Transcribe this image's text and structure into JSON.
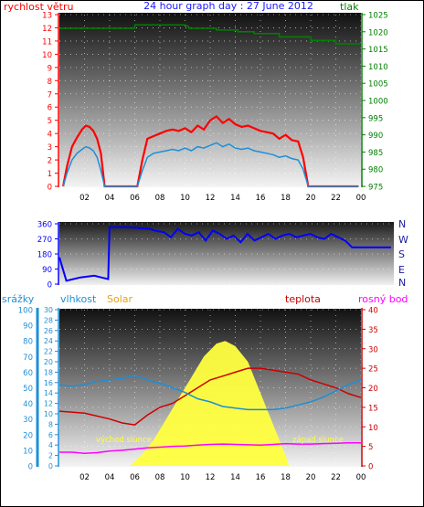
{
  "chart_data": [
    {
      "type": "line",
      "title": "24 hour graph day : 27 June 2012",
      "left_axis": {
        "label": "rychlost větru",
        "ticks": [
          0,
          1,
          2,
          3,
          4,
          5,
          6,
          7,
          8,
          9,
          10,
          11,
          12,
          13
        ],
        "range": [
          0,
          13
        ]
      },
      "right_axis": {
        "label": "tlak",
        "ticks": [
          975,
          980,
          985,
          990,
          995,
          1000,
          1005,
          1010,
          1015,
          1020,
          1025
        ],
        "range": [
          975,
          1025
        ]
      },
      "x_ticks": [
        "02",
        "04",
        "06",
        "08",
        "10",
        "12",
        "14",
        "16",
        "18",
        "20",
        "22",
        "00"
      ],
      "x_range_hours": [
        0,
        24
      ],
      "series": [
        {
          "color": "#ff0000",
          "x": [
            0.3,
            0.6,
            1.0,
            1.4,
            1.8,
            2.1,
            2.4,
            2.7,
            3.0,
            3.3,
            3.6,
            5.0,
            6.2,
            6.6,
            7.0,
            7.5,
            8.0,
            8.5,
            9.0,
            9.5,
            10.0,
            10.5,
            11.0,
            11.5,
            12.0,
            12.5,
            13.0,
            13.5,
            14.0,
            14.5,
            15.0,
            15.5,
            16.0,
            16.5,
            17.0,
            17.5,
            18.0,
            18.5,
            19.0,
            19.4,
            19.8,
            20.5,
            22.0,
            23.8
          ],
          "y": [
            0,
            1.5,
            3.0,
            3.7,
            4.3,
            4.6,
            4.5,
            4.2,
            3.6,
            2.5,
            0,
            0,
            0,
            2.0,
            3.6,
            3.8,
            4.0,
            4.2,
            4.3,
            4.2,
            4.4,
            4.1,
            4.6,
            4.3,
            5.0,
            5.3,
            4.8,
            5.1,
            4.7,
            4.5,
            4.6,
            4.4,
            4.2,
            4.1,
            4.0,
            3.6,
            3.9,
            3.5,
            3.4,
            2.2,
            0,
            0,
            0,
            0
          ]
        },
        {
          "color": "#1e8fd6",
          "x": [
            0.3,
            0.6,
            1.0,
            1.4,
            1.8,
            2.1,
            2.4,
            2.7,
            3.0,
            3.3,
            3.6,
            5.0,
            6.2,
            6.6,
            7.0,
            7.5,
            8.0,
            8.5,
            9.0,
            9.5,
            10.0,
            10.5,
            11.0,
            11.5,
            12.0,
            12.5,
            13.0,
            13.5,
            14.0,
            14.5,
            15.0,
            15.5,
            16.0,
            16.5,
            17.0,
            17.5,
            18.0,
            18.5,
            19.0,
            19.4,
            19.8,
            20.5,
            22.0,
            23.8
          ],
          "y": [
            0,
            1.0,
            2.0,
            2.5,
            2.8,
            3.0,
            2.9,
            2.7,
            2.2,
            1.2,
            0,
            0,
            0,
            1.2,
            2.2,
            2.5,
            2.6,
            2.7,
            2.8,
            2.7,
            2.9,
            2.7,
            3.0,
            2.9,
            3.1,
            3.3,
            3.0,
            3.2,
            2.9,
            2.8,
            2.9,
            2.7,
            2.6,
            2.5,
            2.4,
            2.2,
            2.3,
            2.1,
            2.0,
            1.3,
            0,
            0,
            0,
            0
          ]
        },
        {
          "color": "#008000",
          "axis": "right",
          "x": [
            0,
            6.0,
            6.0,
            10.0,
            10.3,
            10.3,
            12.5,
            12.5,
            14.2,
            14.2,
            15.5,
            15.5,
            17.5,
            17.5,
            20.0,
            20.0,
            22.0,
            22.0,
            24.0
          ],
          "y": [
            1021,
            1021,
            1022,
            1022,
            1021.5,
            1021,
            1021,
            1020.5,
            1020.5,
            1020,
            1020,
            1019.5,
            1019.5,
            1018.5,
            1018.5,
            1017.5,
            1017.5,
            1016.5,
            1016.5
          ]
        }
      ]
    },
    {
      "type": "scatter",
      "left_axis": {
        "ticks": [
          0,
          90,
          180,
          270,
          360
        ],
        "range": [
          0,
          360
        ]
      },
      "right_labels": [
        "N",
        "W",
        "S",
        "E",
        "N"
      ],
      "series": [
        {
          "color": "#0000ff",
          "x": [
            0,
            0.5,
            1.0,
            1.5,
            2.0,
            2.5,
            3.0,
            3.5,
            3.6,
            3.7,
            5.0,
            6.5,
            6.8,
            7.5,
            8.0,
            8.5,
            9.0,
            9.5,
            10.0,
            10.5,
            11.0,
            11.5,
            12.0,
            12.5,
            13.0,
            13.5,
            14.0,
            14.5,
            15.0,
            15.5,
            16.0,
            16.5,
            17.0,
            17.5,
            18.0,
            18.5,
            19.0,
            19.5,
            20.0,
            20.5,
            21.0,
            22.0,
            23.8
          ],
          "y": [
            160,
            20,
            30,
            40,
            45,
            50,
            40,
            30,
            340,
            340,
            340,
            330,
            320,
            310,
            280,
            330,
            300,
            290,
            310,
            260,
            320,
            300,
            270,
            290,
            250,
            300,
            260,
            280,
            300,
            270,
            290,
            300,
            280,
            290,
            300,
            280,
            270,
            300,
            280,
            260,
            220,
            220,
            220
          ]
        }
      ]
    },
    {
      "type": "line",
      "axes": {
        "srazky": {
          "label": "srážky",
          "ticks": [
            0,
            10,
            20,
            30,
            40,
            50,
            60,
            70,
            80,
            90,
            100
          ],
          "color": "#1e8fd6"
        },
        "vlhkost": {
          "label": "vlhkost",
          "ticks": [
            0,
            2,
            4,
            6,
            8,
            10,
            12,
            14,
            16,
            18,
            20,
            22,
            24,
            26,
            28,
            30
          ],
          "color": "#1e8fd6"
        },
        "solar": {
          "label": "Solar",
          "color": "#e6a020"
        },
        "teplota": {
          "label": "teplota",
          "ticks": [
            0,
            5,
            10,
            15,
            20,
            25,
            30,
            35,
            40
          ],
          "color": "#cc0000"
        },
        "rosny_bod": {
          "label": "rosný bod",
          "color": "#ff00ff"
        }
      },
      "annotations": [
        "východ slunce",
        "západ slunce"
      ],
      "x_ticks": [
        "02",
        "04",
        "06",
        "08",
        "10",
        "12",
        "14",
        "16",
        "18",
        "20",
        "22",
        "00"
      ],
      "series": [
        {
          "color": "#ffff40",
          "x": [
            5.6,
            6.5,
            7.5,
            8.5,
            9.5,
            10.5,
            11.5,
            12.5,
            13.2,
            14.0,
            15.0,
            16.0,
            17.0,
            18.0,
            18.3
          ],
          "y": [
            0,
            2,
            5,
            9,
            13,
            17,
            21,
            23.5,
            24,
            23,
            20,
            14,
            8,
            2,
            0
          ]
        },
        {
          "color": "#cc0000",
          "x": [
            0,
            2,
            4,
            5,
            6,
            7,
            8,
            9,
            10,
            11,
            12,
            13,
            14,
            15,
            16,
            17,
            18,
            19,
            20,
            21,
            22,
            23,
            24
          ],
          "y": [
            14,
            13.5,
            12,
            11,
            10.5,
            13,
            15,
            16,
            18,
            20,
            22,
            23,
            24,
            25,
            25,
            24.5,
            24,
            23.5,
            22,
            21,
            20,
            18.5,
            17.5
          ]
        },
        {
          "color": "#1e8fd6",
          "x": [
            0,
            1,
            2,
            3,
            4,
            5,
            6,
            7,
            8,
            9,
            10,
            11,
            12,
            13,
            14,
            15,
            16,
            17,
            18,
            19,
            20,
            21,
            22,
            23,
            24
          ],
          "y": [
            52,
            51,
            52,
            54,
            55,
            56,
            58,
            55,
            53,
            50,
            47,
            43,
            41,
            38,
            37,
            36,
            36,
            36,
            37,
            39,
            41,
            44,
            48,
            52,
            55
          ]
        },
        {
          "color": "#ff00ff",
          "x": [
            0,
            1,
            2,
            3,
            4,
            5,
            6,
            7,
            8,
            9,
            10,
            11,
            12,
            13,
            14,
            15,
            16,
            17,
            18,
            19,
            20,
            21,
            22,
            23,
            24
          ],
          "y": [
            3.5,
            3.5,
            3.2,
            3.4,
            3.8,
            4.0,
            4.3,
            4.6,
            4.8,
            5.0,
            5.1,
            5.3,
            5.5,
            5.6,
            5.5,
            5.4,
            5.3,
            5.5,
            5.7,
            5.6,
            5.6,
            5.7,
            5.8,
            5.9,
            5.9
          ]
        }
      ]
    }
  ]
}
